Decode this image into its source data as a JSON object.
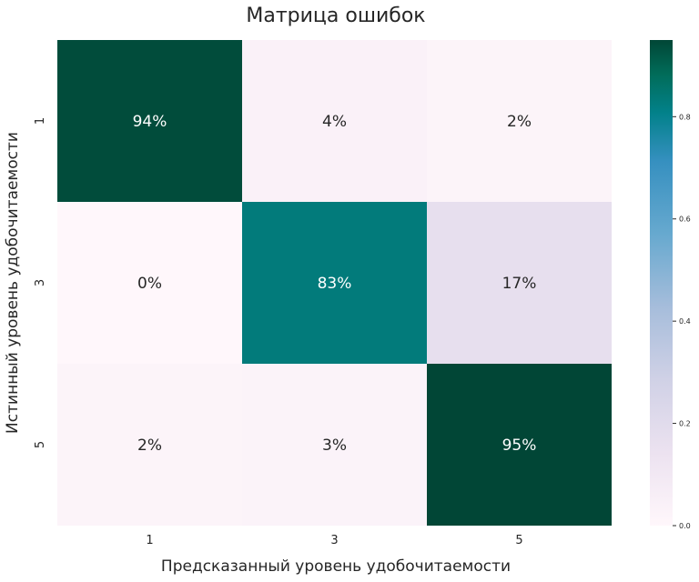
{
  "chart_data": {
    "type": "heatmap",
    "title": "Матрица ошибок",
    "xlabel": "Предсказанный уровень удобочитаемости",
    "ylabel": "Истинный уровень удобочитаемости",
    "x_categories": [
      "1",
      "3",
      "5"
    ],
    "y_categories": [
      "1",
      "3",
      "5"
    ],
    "values": [
      [
        0.94,
        0.04,
        0.02
      ],
      [
        0.0,
        0.83,
        0.17
      ],
      [
        0.02,
        0.03,
        0.95
      ]
    ],
    "cell_labels": [
      [
        "94%",
        "4%",
        "2%"
      ],
      [
        "0%",
        "83%",
        "17%"
      ],
      [
        "2%",
        "3%",
        "95%"
      ]
    ],
    "colorbar": {
      "colormap": "PuBuGn",
      "range": [
        0.0,
        0.95
      ],
      "ticks": [
        0.0,
        0.2,
        0.4,
        0.6,
        0.8
      ],
      "tick_labels": [
        "0.0",
        "0.2",
        "0.4",
        "0.6",
        "0.8"
      ]
    }
  }
}
